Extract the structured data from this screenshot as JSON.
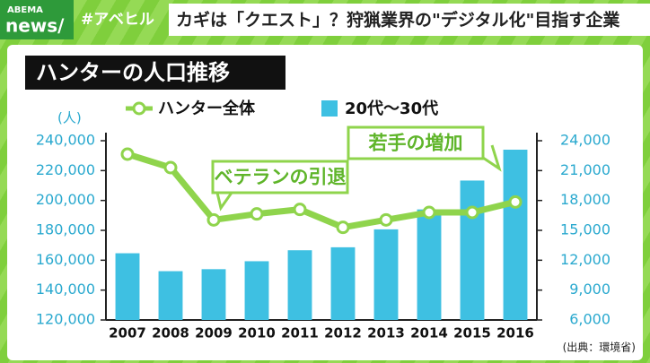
{
  "header": {
    "logo_top": "ABEMA",
    "logo_bottom": "news/",
    "hashtag": "#アベヒル",
    "headline": "カギは「クエスト」？狩猟業界の\"デジタル化\"目指す企業"
  },
  "chart_data": {
    "type": "bar",
    "title": "ハンターの人口推移",
    "y_unit": "(人)",
    "source": "(出典：環境省)",
    "annotations": [
      "ベテランの引退",
      "若手の増加"
    ],
    "categories": [
      "2007",
      "2008",
      "2009",
      "2010",
      "2011",
      "2012",
      "2013",
      "2014",
      "2015",
      "2016"
    ],
    "series": [
      {
        "name": "ハンター全体",
        "type": "line",
        "color": "#8fd44c",
        "values": [
          231000,
          222000,
          187000,
          191000,
          194000,
          182000,
          187000,
          192000,
          192000,
          199000
        ]
      },
      {
        "name": "20代～30代",
        "type": "bar",
        "color": "#3ec0e2",
        "axis": "y2",
        "values": [
          12700,
          10900,
          11100,
          11900,
          13000,
          13300,
          15100,
          17100,
          20000,
          23100
        ]
      }
    ],
    "ylim": [
      120000,
      240000
    ],
    "yticks": [
      {
        "value": 120000,
        "label": "120,000"
      },
      {
        "value": 140000,
        "label": "140,000"
      },
      {
        "value": 160000,
        "label": "160,000"
      },
      {
        "value": 180000,
        "label": "180,000"
      },
      {
        "value": 200000,
        "label": "200,000"
      },
      {
        "value": 220000,
        "label": "220,000"
      },
      {
        "value": 240000,
        "label": "240,000"
      }
    ],
    "y2lim": [
      6000,
      24000
    ],
    "y2ticks": [
      {
        "value": 6000,
        "label": "6,000"
      },
      {
        "value": 9000,
        "label": "9,000"
      },
      {
        "value": 12000,
        "label": "12,000"
      },
      {
        "value": 15000,
        "label": "15,000"
      },
      {
        "value": 18000,
        "label": "18,000"
      },
      {
        "value": 21000,
        "label": "21,000"
      },
      {
        "value": 24000,
        "label": "24,000"
      }
    ]
  }
}
